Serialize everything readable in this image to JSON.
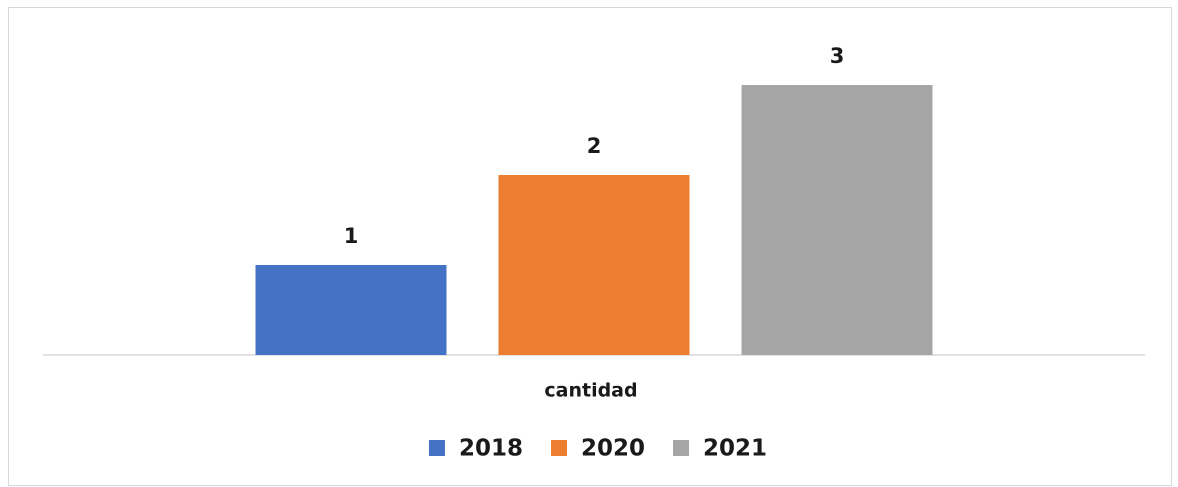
{
  "chart_data": {
    "type": "bar",
    "categories": [
      "cantidad"
    ],
    "series": [
      {
        "name": "2018",
        "color": "#4472c4",
        "values": [
          1
        ]
      },
      {
        "name": "2020",
        "color": "#ed7d31",
        "values": [
          2
        ]
      },
      {
        "name": "2021",
        "color": "#a5a5a5",
        "values": [
          3
        ]
      }
    ],
    "ylim": [
      0,
      3.5
    ],
    "legend": "bottom"
  }
}
